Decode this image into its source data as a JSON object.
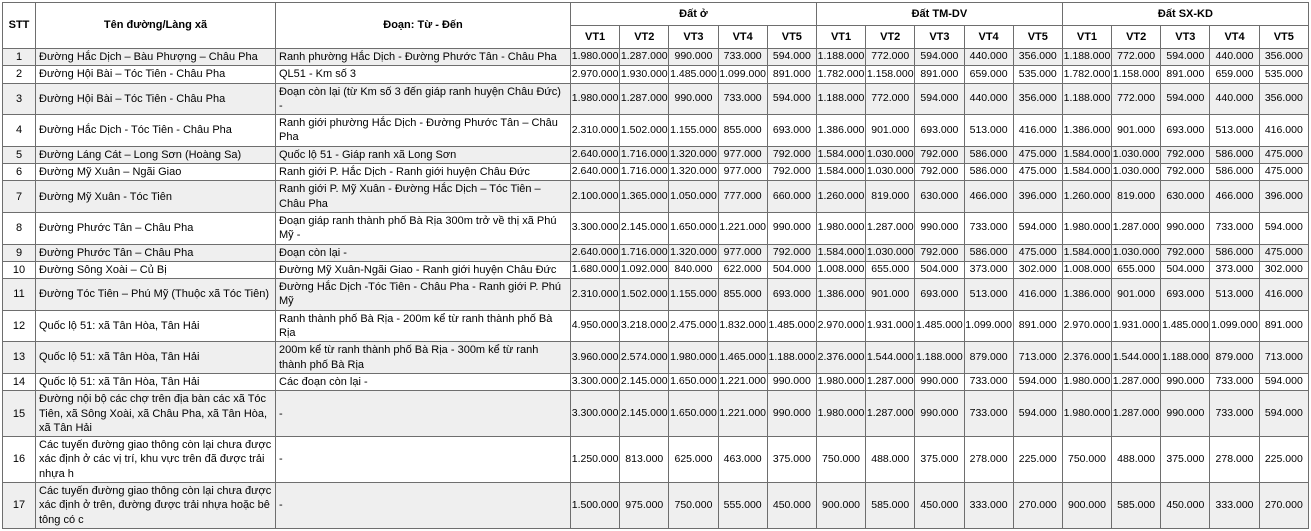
{
  "colors": {
    "border": "#6e6e6e",
    "stripe": "#efefef",
    "header_bg": "#ffffff",
    "text": "#000000"
  },
  "table": {
    "columns": {
      "stt": "STT",
      "name": "Tên đường/Làng xã",
      "segment": "Đoạn: Từ - Đến"
    },
    "groups": [
      "Đất ở",
      "Đất TM-DV",
      "Đất SX-KD"
    ],
    "vt_labels": [
      "VT1",
      "VT2",
      "VT3",
      "VT4",
      "VT5"
    ],
    "rows": [
      {
        "stt": "1",
        "name": "Đường Hắc Dịch – Bàu Phượng – Châu Pha",
        "segment": "Ranh phường Hắc Dịch - Đường Phước Tân - Châu Pha",
        "dat_o": [
          "1.980.000",
          "1.287.000",
          "990.000",
          "733.000",
          "594.000"
        ],
        "dat_tmdv": [
          "1.188.000",
          "772.000",
          "594.000",
          "440.000",
          "356.000"
        ],
        "dat_sxkd": [
          "1.188.000",
          "772.000",
          "594.000",
          "440.000",
          "356.000"
        ]
      },
      {
        "stt": "2",
        "name": "Đường Hội Bài – Tóc Tiên - Châu Pha",
        "segment": "QL51 - Km số 3",
        "dat_o": [
          "2.970.000",
          "1.930.000",
          "1.485.000",
          "1.099.000",
          "891.000"
        ],
        "dat_tmdv": [
          "1.782.000",
          "1.158.000",
          "891.000",
          "659.000",
          "535.000"
        ],
        "dat_sxkd": [
          "1.782.000",
          "1.158.000",
          "891.000",
          "659.000",
          "535.000"
        ]
      },
      {
        "stt": "3",
        "name": "Đường Hội Bài – Tóc Tiên - Châu Pha",
        "segment": "Đoạn còn lại (từ Km số 3 đến giáp ranh huyện Châu Đức) -",
        "dat_o": [
          "1.980.000",
          "1.287.000",
          "990.000",
          "733.000",
          "594.000"
        ],
        "dat_tmdv": [
          "1.188.000",
          "772.000",
          "594.000",
          "440.000",
          "356.000"
        ],
        "dat_sxkd": [
          "1.188.000",
          "772.000",
          "594.000",
          "440.000",
          "356.000"
        ]
      },
      {
        "stt": "4",
        "name": "Đường Hắc Dịch - Tóc Tiên - Châu Pha",
        "segment": "Ranh giới phường Hắc Dịch - Đường Phước Tân – Châu Pha",
        "dat_o": [
          "2.310.000",
          "1.502.000",
          "1.155.000",
          "855.000",
          "693.000"
        ],
        "dat_tmdv": [
          "1.386.000",
          "901.000",
          "693.000",
          "513.000",
          "416.000"
        ],
        "dat_sxkd": [
          "1.386.000",
          "901.000",
          "693.000",
          "513.000",
          "416.000"
        ]
      },
      {
        "stt": "5",
        "name": "Đường Láng Cát – Long Sơn (Hoàng Sa)",
        "segment": "Quốc lộ 51 - Giáp ranh xã Long Sơn",
        "dat_o": [
          "2.640.000",
          "1.716.000",
          "1.320.000",
          "977.000",
          "792.000"
        ],
        "dat_tmdv": [
          "1.584.000",
          "1.030.000",
          "792.000",
          "586.000",
          "475.000"
        ],
        "dat_sxkd": [
          "1.584.000",
          "1.030.000",
          "792.000",
          "586.000",
          "475.000"
        ]
      },
      {
        "stt": "6",
        "name": "Đường Mỹ Xuân – Ngãi Giao",
        "segment": "Ranh giới P. Hắc Dịch - Ranh giới huyện Châu Đức",
        "dat_o": [
          "2.640.000",
          "1.716.000",
          "1.320.000",
          "977.000",
          "792.000"
        ],
        "dat_tmdv": [
          "1.584.000",
          "1.030.000",
          "792.000",
          "586.000",
          "475.000"
        ],
        "dat_sxkd": [
          "1.584.000",
          "1.030.000",
          "792.000",
          "586.000",
          "475.000"
        ]
      },
      {
        "stt": "7",
        "name": "Đường Mỹ Xuân - Tóc Tiên",
        "segment": "Ranh giới P. Mỹ Xuân - Đường Hắc Dịch – Tóc Tiên – Châu Pha",
        "dat_o": [
          "2.100.000",
          "1.365.000",
          "1.050.000",
          "777.000",
          "660.000"
        ],
        "dat_tmdv": [
          "1.260.000",
          "819.000",
          "630.000",
          "466.000",
          "396.000"
        ],
        "dat_sxkd": [
          "1.260.000",
          "819.000",
          "630.000",
          "466.000",
          "396.000"
        ]
      },
      {
        "stt": "8",
        "name": "Đường Phước Tân – Châu Pha",
        "segment": "Đoạn giáp ranh thành phố Bà Rịa 300m trở về thị xã Phú Mỹ -",
        "dat_o": [
          "3.300.000",
          "2.145.000",
          "1.650.000",
          "1.221.000",
          "990.000"
        ],
        "dat_tmdv": [
          "1.980.000",
          "1.287.000",
          "990.000",
          "733.000",
          "594.000"
        ],
        "dat_sxkd": [
          "1.980.000",
          "1.287.000",
          "990.000",
          "733.000",
          "594.000"
        ]
      },
      {
        "stt": "9",
        "name": "Đường Phước Tân – Châu Pha",
        "segment": "Đoạn còn lại -",
        "dat_o": [
          "2.640.000",
          "1.716.000",
          "1.320.000",
          "977.000",
          "792.000"
        ],
        "dat_tmdv": [
          "1.584.000",
          "1.030.000",
          "792.000",
          "586.000",
          "475.000"
        ],
        "dat_sxkd": [
          "1.584.000",
          "1.030.000",
          "792.000",
          "586.000",
          "475.000"
        ]
      },
      {
        "stt": "10",
        "name": "Đường Sông Xoài – Củ Bị",
        "segment": "Đường Mỹ Xuân-Ngãi Giao - Ranh giới huyện Châu Đức",
        "dat_o": [
          "1.680.000",
          "1.092.000",
          "840.000",
          "622.000",
          "504.000"
        ],
        "dat_tmdv": [
          "1.008.000",
          "655.000",
          "504.000",
          "373.000",
          "302.000"
        ],
        "dat_sxkd": [
          "1.008.000",
          "655.000",
          "504.000",
          "373.000",
          "302.000"
        ]
      },
      {
        "stt": "11",
        "name": "Đường Tóc Tiên – Phú Mỹ (Thuộc xã Tóc Tiên)",
        "segment": "Đường Hắc Dịch -Tóc Tiên - Châu Pha - Ranh giới P. Phú Mỹ",
        "dat_o": [
          "2.310.000",
          "1.502.000",
          "1.155.000",
          "855.000",
          "693.000"
        ],
        "dat_tmdv": [
          "1.386.000",
          "901.000",
          "693.000",
          "513.000",
          "416.000"
        ],
        "dat_sxkd": [
          "1.386.000",
          "901.000",
          "693.000",
          "513.000",
          "416.000"
        ]
      },
      {
        "stt": "12",
        "name": "Quốc lộ 51: xã Tân Hòa, Tân Hải",
        "segment": "Ranh thành phố Bà Rịa - 200m kể từ ranh thành phố Bà Rịa",
        "dat_o": [
          "4.950.000",
          "3.218.000",
          "2.475.000",
          "1.832.000",
          "1.485.000"
        ],
        "dat_tmdv": [
          "2.970.000",
          "1.931.000",
          "1.485.000",
          "1.099.000",
          "891.000"
        ],
        "dat_sxkd": [
          "2.970.000",
          "1.931.000",
          "1.485.000",
          "1.099.000",
          "891.000"
        ]
      },
      {
        "stt": "13",
        "name": "Quốc lộ 51: xã Tân Hòa, Tân Hải",
        "segment": "200m kể từ ranh thành phố Bà Rịa - 300m kể từ ranh thành phố Bà Rịa",
        "dat_o": [
          "3.960.000",
          "2.574.000",
          "1.980.000",
          "1.465.000",
          "1.188.000"
        ],
        "dat_tmdv": [
          "2.376.000",
          "1.544.000",
          "1.188.000",
          "879.000",
          "713.000"
        ],
        "dat_sxkd": [
          "2.376.000",
          "1.544.000",
          "1.188.000",
          "879.000",
          "713.000"
        ]
      },
      {
        "stt": "14",
        "name": "Quốc lộ 51: xã Tân Hòa, Tân Hải",
        "segment": "Các đoạn còn lại -",
        "dat_o": [
          "3.300.000",
          "2.145.000",
          "1.650.000",
          "1.221.000",
          "990.000"
        ],
        "dat_tmdv": [
          "1.980.000",
          "1.287.000",
          "990.000",
          "733.000",
          "594.000"
        ],
        "dat_sxkd": [
          "1.980.000",
          "1.287.000",
          "990.000",
          "733.000",
          "594.000"
        ]
      },
      {
        "stt": "15",
        "name": "Đường nội bộ các chợ trên địa bàn các xã Tóc Tiên, xã Sông Xoài, xã Châu Pha, xã Tân Hòa, xã Tân Hải",
        "segment": "-",
        "dat_o": [
          "3.300.000",
          "2.145.000",
          "1.650.000",
          "1.221.000",
          "990.000"
        ],
        "dat_tmdv": [
          "1.980.000",
          "1.287.000",
          "990.000",
          "733.000",
          "594.000"
        ],
        "dat_sxkd": [
          "1.980.000",
          "1.287.000",
          "990.000",
          "733.000",
          "594.000"
        ]
      },
      {
        "stt": "16",
        "name": "Các tuyến đường giao thông còn lại chưa được xác định ở các vị trí, khu vực trên đã được trải nhựa h",
        "segment": "-",
        "dat_o": [
          "1.250.000",
          "813.000",
          "625.000",
          "463.000",
          "375.000"
        ],
        "dat_tmdv": [
          "750.000",
          "488.000",
          "375.000",
          "278.000",
          "225.000"
        ],
        "dat_sxkd": [
          "750.000",
          "488.000",
          "375.000",
          "278.000",
          "225.000"
        ]
      },
      {
        "stt": "17",
        "name": "Các tuyến đường giao thông còn lại chưa được xác định ở trên, đường được trải nhựa hoặc bê tông có c",
        "segment": "-",
        "dat_o": [
          "1.500.000",
          "975.000",
          "750.000",
          "555.000",
          "450.000"
        ],
        "dat_tmdv": [
          "900.000",
          "585.000",
          "450.000",
          "333.000",
          "270.000"
        ],
        "dat_sxkd": [
          "900.000",
          "585.000",
          "450.000",
          "333.000",
          "270.000"
        ]
      }
    ]
  }
}
